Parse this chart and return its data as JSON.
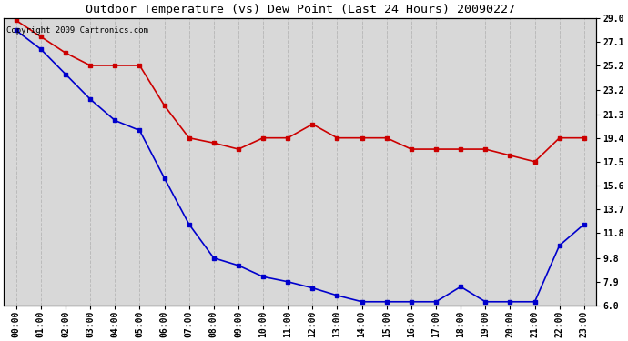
{
  "title": "Outdoor Temperature (vs) Dew Point (Last 24 Hours) 20090227",
  "copyright_text": "Copyright 2009 Cartronics.com",
  "x_labels": [
    "00:00",
    "01:00",
    "02:00",
    "03:00",
    "04:00",
    "05:00",
    "06:00",
    "07:00",
    "08:00",
    "09:00",
    "10:00",
    "11:00",
    "12:00",
    "13:00",
    "14:00",
    "15:00",
    "16:00",
    "17:00",
    "18:00",
    "19:00",
    "20:00",
    "21:00",
    "22:00",
    "23:00"
  ],
  "temp_data": [
    28.8,
    27.5,
    26.2,
    25.2,
    25.2,
    25.2,
    22.0,
    19.4,
    19.0,
    18.5,
    19.4,
    19.4,
    20.5,
    19.4,
    19.4,
    19.4,
    18.5,
    18.5,
    18.5,
    18.5,
    18.0,
    17.5,
    19.4,
    19.4
  ],
  "dew_data": [
    28.0,
    26.5,
    24.5,
    22.5,
    20.8,
    20.0,
    16.2,
    12.5,
    9.8,
    9.2,
    8.3,
    7.9,
    7.4,
    6.8,
    6.3,
    6.3,
    6.3,
    6.3,
    7.5,
    6.3,
    6.3,
    6.3,
    10.8,
    12.5
  ],
  "temp_color": "#cc0000",
  "dew_color": "#0000cc",
  "bg_color": "#d8d8d8",
  "grid_color": "#bbbbbb",
  "ylim": [
    6.0,
    29.0
  ],
  "yticks_right": [
    29.0,
    27.1,
    25.2,
    23.2,
    21.3,
    19.4,
    17.5,
    15.6,
    13.7,
    11.8,
    9.8,
    7.9,
    6.0
  ],
  "title_fontsize": 9.5,
  "tick_fontsize": 7.0,
  "copyright_fontsize": 6.5,
  "marker": "s",
  "marker_size": 2.5,
  "line_width": 1.2
}
